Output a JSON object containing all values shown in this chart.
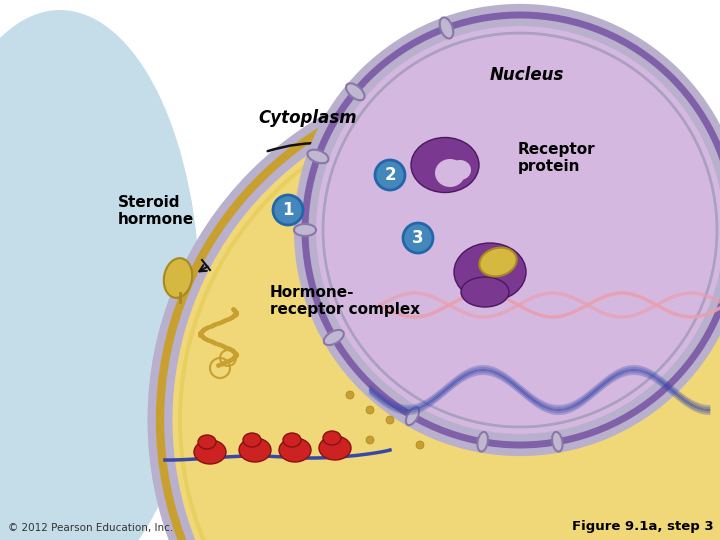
{
  "bg_color": "#f0f0f0",
  "copyright": "© 2012 Pearson Education, Inc.",
  "figure_label": "Figure 9.1a, step 3",
  "labels": {
    "steroid_hormone": "Steroid\nhormone",
    "cytoplasm": "Cytoplasm",
    "nucleus": "Nucleus",
    "receptor_protein": "Receptor\nprotein",
    "hormone_receptor": "Hormone-\nreceptor complex",
    "step1": "1",
    "step2": "2",
    "step3": "3"
  },
  "colors": {
    "white_bg": "#ffffff",
    "light_blue_bg": "#c5dde8",
    "cell_fill": "#f0d878",
    "cell_border_outer": "#c8a030",
    "cell_border_inner": "#e8d060",
    "membrane_gray": "#b8b0cc",
    "membrane_dark": "#7060a0",
    "nucleus_fill": "#d5b8e0",
    "nucleus_border_outer": "#8060a8",
    "nucleus_border_dark": "#3a3070",
    "hormone_yellow": "#d4b840",
    "hormone_dark": "#a88820",
    "receptor_purple": "#7a3890",
    "receptor_dark": "#4a1860",
    "dna_pink": "#e8a0b0",
    "dna_blue": "#3848a8",
    "ribosome_red": "#cc2222",
    "ribosome_dark": "#881111",
    "chain_gold": "#c8a030",
    "circle_fill": "#4488bb",
    "circle_border": "#2266aa",
    "circle_text": "#ffffff",
    "arrow_color": "#111111",
    "label_color": "#000000",
    "gold_dots": "#c8a030",
    "pore_fill": "#c0b8d0",
    "pore_border": "#8878a8"
  }
}
